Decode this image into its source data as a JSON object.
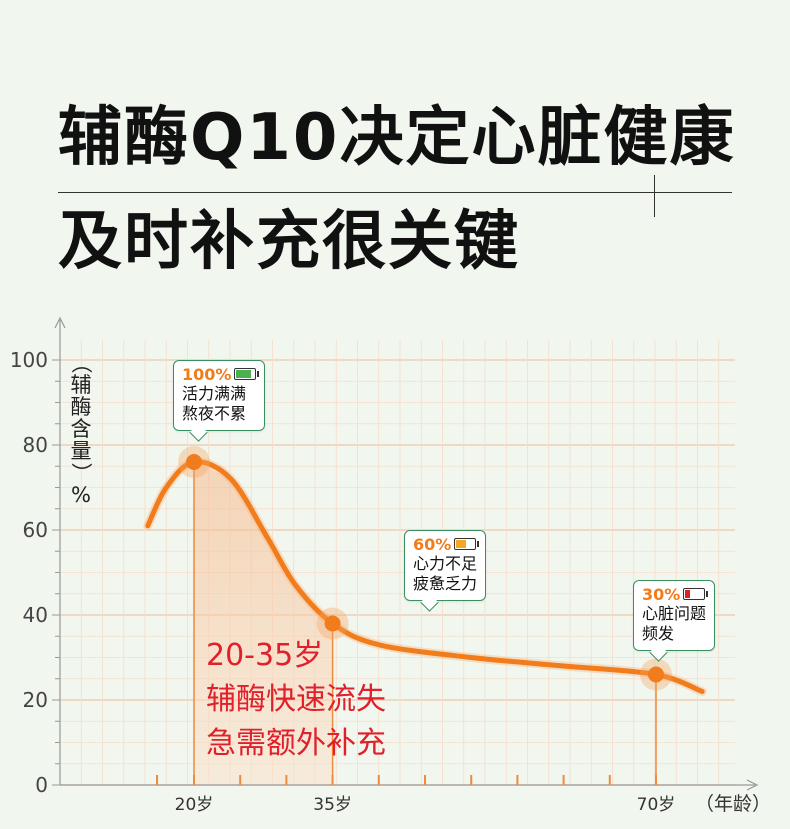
{
  "title": {
    "line1": "辅酶Q10决定心脏健康",
    "line2": "及时补充很关键"
  },
  "colors": {
    "curve": "#f07c1c",
    "battery_full": "#4caf50",
    "battery_mid": "#f5a623",
    "battery_low": "#e02020",
    "note": "#e0202a"
  },
  "chart_data": {
    "type": "line",
    "title": "",
    "ylabel": "（辅酶含量）%",
    "xlabel": "（年龄）",
    "ylim": [
      0,
      100
    ],
    "yticks": [
      "0",
      "20",
      "40",
      "60",
      "80",
      "100"
    ],
    "xticks": [
      {
        "x": 20,
        "label": "20岁"
      },
      {
        "x": 35,
        "label": "35岁"
      },
      {
        "x": 70,
        "label": "70岁"
      }
    ],
    "x_axis_ticks": [
      16,
      20,
      25,
      30,
      35,
      40,
      45,
      50,
      55,
      60,
      65,
      70
    ],
    "series": [
      {
        "points": [
          [
            15,
            61
          ],
          [
            17,
            70
          ],
          [
            20,
            76
          ],
          [
            24,
            72
          ],
          [
            28,
            58
          ],
          [
            31,
            47
          ],
          [
            35,
            38
          ],
          [
            40,
            33
          ],
          [
            50,
            30
          ],
          [
            60,
            28
          ],
          [
            70,
            26
          ],
          [
            75,
            22
          ]
        ]
      }
    ],
    "highlight_points": [
      {
        "x": 20,
        "y": 76,
        "percent": "100%",
        "battery": "full",
        "lines": [
          "活力满满",
          "熬夜不累"
        ]
      },
      {
        "x": 35,
        "y": 38,
        "percent": "60%",
        "battery": "mid",
        "lines": [
          "心力不足",
          "疲惫乏力"
        ]
      },
      {
        "x": 70,
        "y": 26,
        "percent": "30%",
        "battery": "low",
        "lines": [
          "心脏问题",
          "频发"
        ]
      }
    ],
    "shaded_range": {
      "from": 20,
      "to": 35
    },
    "annotation": [
      "20-35岁",
      "辅酶快速流失",
      "急需额外补充"
    ]
  }
}
